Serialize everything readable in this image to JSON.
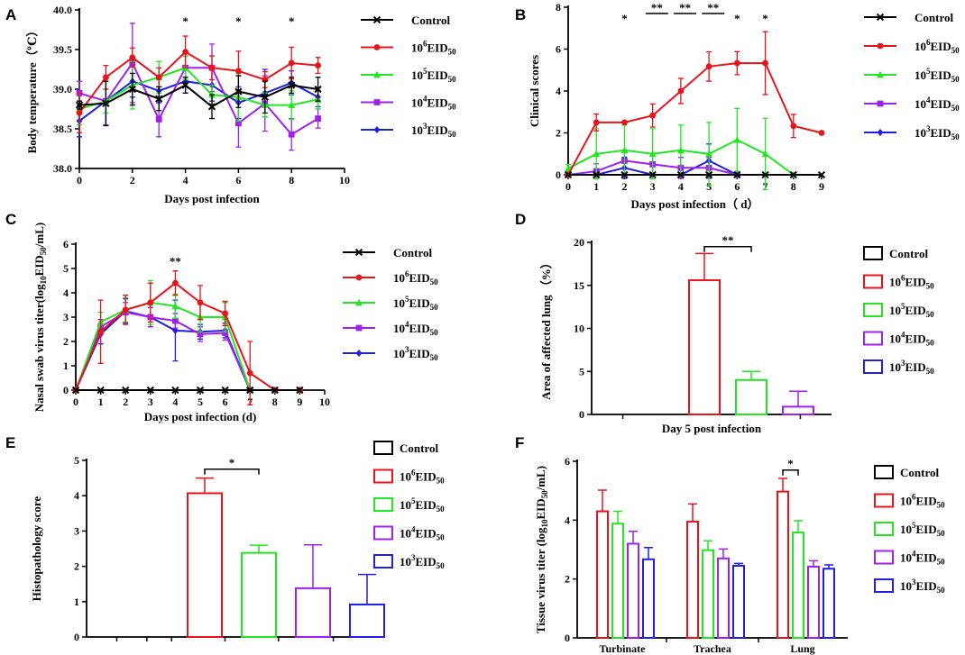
{
  "colors": {
    "Control": "#000000",
    "1e6": "#e8141c",
    "1e5": "#22e622",
    "1e4": "#a020f0",
    "1e3": "#1f1fe6"
  },
  "legend": [
    {
      "key": "Control",
      "label": "Control"
    },
    {
      "key": "1e6",
      "base": "10",
      "exp": "6",
      "unit": "EID",
      "sub": "50"
    },
    {
      "key": "1e5",
      "base": "10",
      "exp": "5",
      "unit": "EID",
      "sub": "50"
    },
    {
      "key": "1e4",
      "base": "10",
      "exp": "4",
      "unit": "EID",
      "sub": "50"
    },
    {
      "key": "1e3",
      "base": "10",
      "exp": "3",
      "unit": "EID",
      "sub": "50"
    }
  ],
  "chart_data": [
    {
      "panel": "A",
      "type": "line",
      "xlabel": "Days post infection",
      "ylabel": "Body temperature（℃）",
      "xlim": [
        0,
        10
      ],
      "ylim": [
        38.0,
        40.0
      ],
      "xticks": [
        0,
        2,
        4,
        6,
        8,
        10
      ],
      "yticks": [
        38.0,
        38.5,
        39.0,
        39.5,
        40.0
      ],
      "yticklabels": [
        "38.0",
        "38.5",
        "39.0",
        "39.5",
        "40.0"
      ],
      "x": [
        0,
        1,
        2,
        3,
        4,
        5,
        6,
        7,
        8,
        9
      ],
      "series": [
        {
          "key": "Control",
          "marker": "x",
          "values": [
            38.8,
            38.82,
            39.0,
            38.88,
            39.05,
            38.78,
            38.97,
            38.9,
            39.05,
            39.0
          ],
          "errors": [
            0.05,
            0.28,
            0.2,
            0.15,
            0.1,
            0.15,
            0.2,
            0.2,
            0.1,
            0.15
          ]
        },
        {
          "key": "1e6",
          "marker": "circle",
          "values": [
            38.7,
            39.15,
            39.4,
            39.15,
            39.47,
            39.27,
            39.23,
            39.12,
            39.33,
            39.3
          ],
          "errors": [
            0.25,
            0.15,
            0.12,
            0.12,
            0.2,
            0.15,
            0.25,
            0.1,
            0.2,
            0.1
          ]
        },
        {
          "key": "1e5",
          "marker": "triangle",
          "values": [
            38.75,
            38.85,
            39.05,
            39.15,
            39.27,
            38.93,
            38.9,
            38.8,
            38.8,
            38.87
          ],
          "errors": [
            0.2,
            0.15,
            0.3,
            0.2,
            0.15,
            0.12,
            0.3,
            0.15,
            0.18,
            0.12
          ]
        },
        {
          "key": "1e4",
          "marker": "square",
          "values": [
            38.95,
            38.85,
            39.33,
            38.62,
            39.27,
            39.27,
            38.57,
            38.82,
            38.43,
            38.63
          ],
          "errors": [
            0.15,
            0.3,
            0.5,
            0.22,
            0.15,
            0.3,
            0.3,
            0.35,
            0.2,
            0.12
          ]
        },
        {
          "key": "1e3",
          "marker": "diamond",
          "values": [
            38.6,
            38.85,
            39.1,
            38.98,
            39.1,
            39.05,
            38.83,
            38.95,
            39.08,
            38.9
          ],
          "errors": [
            0.2,
            0.3,
            0.2,
            0.15,
            0.15,
            0.2,
            0.2,
            0.3,
            0.15,
            0.12
          ]
        }
      ],
      "significance": [
        {
          "x": 4,
          "label": "*"
        },
        {
          "x": 6,
          "label": "*"
        },
        {
          "x": 8,
          "label": "*"
        }
      ]
    },
    {
      "panel": "B",
      "type": "line",
      "xlabel": "Days post infection（ d）",
      "ylabel": "Clinical scores",
      "xlim": [
        0,
        9
      ],
      "ylim": [
        0,
        8
      ],
      "xticks": [
        0,
        1,
        2,
        3,
        4,
        5,
        6,
        7,
        8,
        9
      ],
      "yticks": [
        0,
        2,
        4,
        6,
        8
      ],
      "yticklabels": [
        "0",
        "2",
        "4",
        "6",
        "8"
      ],
      "x": [
        0,
        1,
        2,
        3,
        4,
        5,
        6,
        7,
        8,
        9
      ],
      "series": [
        {
          "key": "Control",
          "marker": "x",
          "values": [
            0,
            0,
            0,
            0,
            0,
            0,
            0,
            0,
            0,
            0
          ],
          "errors": [
            0,
            0,
            0,
            0,
            0,
            0,
            0,
            0,
            0,
            0
          ]
        },
        {
          "key": "1e6",
          "marker": "circle",
          "values": [
            0,
            2.5,
            2.5,
            2.83,
            4.0,
            5.17,
            5.33,
            5.33,
            2.33,
            2.0
          ],
          "errors": [
            0,
            0.4,
            0,
            0.55,
            0.6,
            0.7,
            0.55,
            1.5,
            0.55,
            0
          ]
        },
        {
          "key": "1e5",
          "marker": "triangle",
          "values": [
            0.3,
            1.0,
            1.17,
            1.0,
            1.17,
            1.0,
            1.67,
            1.0,
            0,
            null
          ],
          "errors": [
            0.2,
            1.2,
            1.2,
            1.2,
            1.2,
            1.5,
            1.5,
            1.7,
            0,
            0
          ]
        },
        {
          "key": "1e4",
          "marker": "square",
          "values": [
            0,
            0.17,
            0.67,
            0.5,
            0.33,
            0.33,
            0,
            null,
            null,
            null
          ],
          "errors": [
            0,
            0.35,
            0.4,
            0.5,
            0.5,
            0.5,
            0,
            0,
            0,
            0
          ]
        },
        {
          "key": "1e3",
          "marker": "diamond",
          "values": [
            0,
            0,
            0.33,
            0,
            0,
            0.67,
            0,
            null,
            null,
            null
          ],
          "errors": [
            0,
            0,
            0.5,
            0,
            0,
            0.8,
            0,
            0,
            0,
            0
          ]
        }
      ],
      "significance": [
        {
          "x": 2,
          "label": "*"
        },
        {
          "x1": 2.75,
          "x2": 3.55,
          "label": "**"
        },
        {
          "x1": 3.75,
          "x2": 4.55,
          "label": "**"
        },
        {
          "x1": 4.75,
          "x2": 5.55,
          "label": "**"
        },
        {
          "x": 6,
          "label": "*"
        },
        {
          "x": 7,
          "label": "*"
        }
      ]
    },
    {
      "panel": "C",
      "type": "line",
      "xlabel": "Days post infection (d)",
      "ylabel_parts": [
        "Nasal swab virus titer(log",
        "10",
        "EID",
        "50",
        "/mL)"
      ],
      "xlim": [
        0,
        10
      ],
      "ylim": [
        0,
        6
      ],
      "xticks": [
        0,
        1,
        2,
        3,
        4,
        5,
        6,
        7,
        8,
        9,
        10
      ],
      "yticks": [
        0,
        1,
        2,
        3,
        4,
        5,
        6
      ],
      "yticklabels": [
        "0",
        "1",
        "2",
        "3",
        "4",
        "5",
        "6"
      ],
      "x": [
        0,
        1,
        2,
        3,
        4,
        5,
        6,
        7,
        8,
        9
      ],
      "series": [
        {
          "key": "Control",
          "marker": "x",
          "values": [
            0,
            0,
            0,
            0,
            0,
            0,
            0,
            0,
            0,
            0
          ],
          "errors": [
            0,
            0,
            0,
            0,
            0,
            0,
            0,
            0,
            0,
            0
          ]
        },
        {
          "key": "1e6",
          "marker": "circle",
          "values": [
            0,
            2.4,
            3.3,
            3.6,
            4.4,
            3.6,
            3.15,
            0.7,
            0,
            0
          ],
          "errors": [
            0,
            1.3,
            0.6,
            0.8,
            0.5,
            0.7,
            0.5,
            1.3,
            0,
            0
          ]
        },
        {
          "key": "1e5",
          "marker": "triangle",
          "values": [
            0,
            2.8,
            3.3,
            3.6,
            3.45,
            3.0,
            3.0,
            0,
            0,
            0
          ],
          "errors": [
            0,
            0.4,
            0.5,
            0.9,
            0.5,
            0.6,
            0.6,
            0,
            0,
            0
          ]
        },
        {
          "key": "1e4",
          "marker": "square",
          "values": [
            0,
            2.6,
            3.2,
            3.0,
            2.85,
            2.3,
            2.35,
            0,
            0,
            0
          ],
          "errors": [
            0,
            0.3,
            0.4,
            0.4,
            0.3,
            0.3,
            0.3,
            0,
            0,
            0
          ]
        },
        {
          "key": "1e3",
          "marker": "diamond",
          "values": [
            0,
            2.3,
            3.25,
            3.0,
            2.45,
            2.4,
            2.45,
            0,
            0,
            0
          ],
          "errors": [
            0,
            0.4,
            0.5,
            0.4,
            1.25,
            0.3,
            0.3,
            0,
            0,
            0
          ]
        }
      ],
      "significance": [
        {
          "x": 4,
          "label": "**"
        }
      ]
    },
    {
      "panel": "D",
      "type": "bar",
      "categories": [
        "Day 5 post infection"
      ],
      "ylabel": "Area of affected lung （%）",
      "ylim": [
        0,
        20
      ],
      "yticks": [
        0,
        5,
        10,
        15,
        20
      ],
      "yticklabels": [
        "0",
        "5",
        "10",
        "15",
        "20"
      ],
      "series": [
        {
          "key": "Control",
          "values": [
            0
          ],
          "errors": [
            0
          ]
        },
        {
          "key": "1e6",
          "values": [
            15.6
          ],
          "errors": [
            3.1
          ]
        },
        {
          "key": "1e5",
          "values": [
            4.0
          ],
          "errors": [
            1.0
          ]
        },
        {
          "key": "1e4",
          "values": [
            0.9
          ],
          "errors": [
            1.8
          ]
        },
        {
          "key": "1e3",
          "values": [
            0
          ],
          "errors": [
            0
          ]
        }
      ],
      "significance": [
        {
          "from": "1e6",
          "to": "1e5",
          "value": 19.5,
          "label": "**"
        }
      ]
    },
    {
      "panel": "E",
      "type": "bar",
      "categories": [
        ""
      ],
      "ylabel": "Histopathology score",
      "ylim": [
        0,
        5
      ],
      "yticks": [
        0,
        1,
        2,
        3,
        4,
        5
      ],
      "yticklabels": [
        "0",
        "1",
        "2",
        "3",
        "4",
        "5"
      ],
      "series": [
        {
          "key": "Control",
          "values": [
            0
          ],
          "errors": [
            0
          ]
        },
        {
          "key": "1e6",
          "values": [
            4.07
          ],
          "errors": [
            0.43
          ]
        },
        {
          "key": "1e5",
          "values": [
            2.38
          ],
          "errors": [
            0.22
          ]
        },
        {
          "key": "1e4",
          "values": [
            1.38
          ],
          "errors": [
            1.23
          ]
        },
        {
          "key": "1e3",
          "values": [
            0.92
          ],
          "errors": [
            0.85
          ]
        }
      ],
      "significance": [
        {
          "from": "1e6",
          "to": "1e5",
          "value": 4.75,
          "label": "*"
        }
      ]
    },
    {
      "panel": "F",
      "type": "bar",
      "categories": [
        "Turbinate",
        "Trachea",
        "Lung"
      ],
      "ylabel_parts": [
        "Tissue virus titer (log",
        "10",
        "EID",
        "50",
        "/mL)"
      ],
      "ylim": [
        0,
        6
      ],
      "yticks": [
        0,
        2,
        4,
        6
      ],
      "yticklabels": [
        "0",
        "2",
        "4",
        "6"
      ],
      "series": [
        {
          "key": "Control",
          "values": [
            0,
            0,
            0
          ],
          "errors": [
            0,
            0,
            0
          ]
        },
        {
          "key": "1e6",
          "values": [
            4.3,
            3.95,
            4.97
          ],
          "errors": [
            0.72,
            0.6,
            0.45
          ]
        },
        {
          "key": "1e5",
          "values": [
            3.88,
            2.98,
            3.58
          ],
          "errors": [
            0.42,
            0.32,
            0.4
          ]
        },
        {
          "key": "1e4",
          "values": [
            3.2,
            2.7,
            2.42
          ],
          "errors": [
            0.42,
            0.32,
            0.2
          ]
        },
        {
          "key": "1e3",
          "values": [
            2.67,
            2.45,
            2.35
          ],
          "errors": [
            0.4,
            0.08,
            0.13
          ]
        }
      ],
      "significance": [
        {
          "category": 2,
          "from": "1e6",
          "to": "1e5",
          "value": 5.7,
          "label": "*"
        }
      ]
    }
  ]
}
